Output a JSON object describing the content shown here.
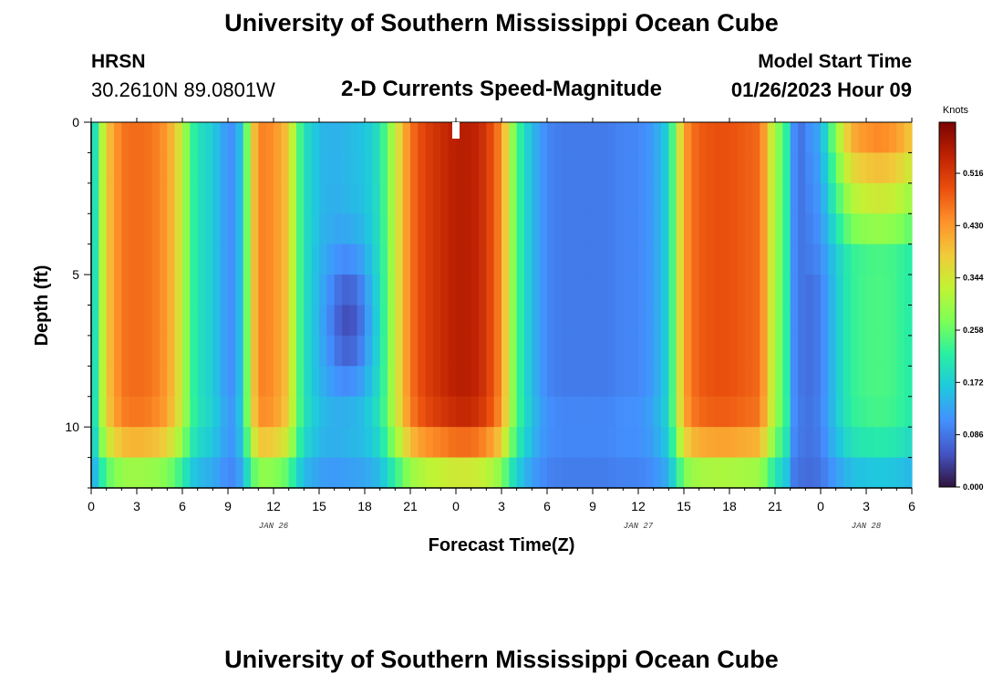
{
  "title": "University of Southern Mississippi Ocean Cube",
  "station": "HRSN",
  "coords": "30.2610N  89.0801W",
  "subtitle": "2-D Currents Speed-Magnitude",
  "model_start_label": "Model Start Time",
  "model_start_value": "01/26/2023 Hour 09",
  "chart_data": {
    "type": "heatmap",
    "xlabel": "Forecast Time(Z)",
    "ylabel": "Depth (ft)",
    "x_hours": [
      0,
      54
    ],
    "x_tick_labels": [
      "0",
      "3",
      "6",
      "9",
      "12",
      "15",
      "18",
      "21",
      "0",
      "3",
      "6",
      "9",
      "12",
      "15",
      "18",
      "21",
      "0",
      "3",
      "6"
    ],
    "date_labels": [
      {
        "text": "JAN 26",
        "hour": 12
      },
      {
        "text": "JAN 27",
        "hour": 36
      },
      {
        "text": "JAN 28",
        "hour": 51
      }
    ],
    "ylim": [
      0,
      12
    ],
    "y_ticks": [
      0,
      5,
      10
    ],
    "colorbar": {
      "title": "Knots",
      "min": 0.0,
      "max": 0.6,
      "labels": [
        "0.000",
        "0.086",
        "0.172",
        "0.258",
        "0.344",
        "0.430",
        "0.516"
      ],
      "colors": [
        "#30123b",
        "#4454c4",
        "#4390fe",
        "#1fc8de",
        "#29efa2",
        "#7dff56",
        "#c1f334",
        "#f1ca3a",
        "#fe922a",
        "#ea4f0d",
        "#be2102",
        "#7a0403"
      ]
    },
    "grid_step_hours": 0.5,
    "depth_levels_ft": [
      0.5,
      1.5,
      2.5,
      3.5,
      4.5,
      5.5,
      6.5,
      7.5,
      8.5,
      9.5,
      10.5,
      11.5
    ],
    "speed_profile": {
      "hours": [
        0,
        0.5,
        1,
        2,
        3,
        4,
        5,
        6,
        6.5,
        7,
        8,
        9,
        9.5,
        10,
        10.5,
        11,
        12,
        13,
        13.5,
        14,
        15,
        16,
        17,
        18,
        19,
        20,
        21,
        22,
        23,
        24,
        25,
        26,
        27,
        27.5,
        28,
        29,
        30,
        31,
        32,
        33,
        34,
        35,
        36,
        37,
        38,
        38.5,
        39,
        39.5,
        40,
        41,
        42,
        43,
        44,
        45,
        46,
        47,
        48,
        49,
        50,
        51,
        52,
        53,
        54
      ],
      "surface_speed": [
        0.14,
        0.26,
        0.38,
        0.46,
        0.47,
        0.46,
        0.43,
        0.33,
        0.24,
        0.2,
        0.17,
        0.11,
        0.11,
        0.19,
        0.34,
        0.45,
        0.44,
        0.38,
        0.27,
        0.2,
        0.15,
        0.14,
        0.15,
        0.16,
        0.2,
        0.33,
        0.46,
        0.51,
        0.53,
        0.55,
        0.55,
        0.52,
        0.44,
        0.33,
        0.24,
        0.15,
        0.1,
        0.09,
        0.09,
        0.09,
        0.09,
        0.1,
        0.1,
        0.12,
        0.18,
        0.3,
        0.42,
        0.46,
        0.48,
        0.49,
        0.49,
        0.48,
        0.47,
        0.3,
        0.19,
        0.1,
        0.14,
        0.3,
        0.43,
        0.46,
        0.47,
        0.45,
        0.4
      ]
    }
  }
}
